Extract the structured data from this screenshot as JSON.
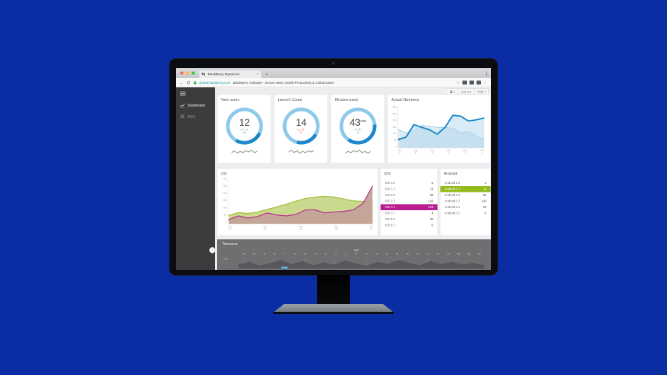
{
  "scene": {
    "background": "#0b2da4"
  },
  "icons": {
    "close": "×",
    "new_tab": "+",
    "back": "←",
    "star": "☆",
    "menu_dots": "⋮",
    "caret_down": "▾",
    "chevron_left": "‹",
    "download": "↓"
  },
  "browser": {
    "traffic_lights": [
      "#ff5f57",
      "#febc2e",
      "#28c840"
    ],
    "tab": {
      "title": "BlackBerry Dynamics"
    },
    "address": {
      "url": "global.blackberry.com",
      "page_title": "BlackBerry Software - Secure UEM, Mobile Productivity & Collaboration"
    }
  },
  "account_bar": {
    "logout": "Log out",
    "help": "Help"
  },
  "sidebar": {
    "items": [
      "Dashboard",
      "Apps"
    ]
  },
  "colors": {
    "ring_light": "#8fc9e9",
    "ring_dark": "#1d88cb",
    "green": "#3aa546",
    "red": "#e0442e",
    "ios_highlight": "#b81c8e",
    "android_highlight": "#93bb1c",
    "timezone_highlight": "#58b7e8"
  },
  "kpis": [
    {
      "title": "New users",
      "value": "12",
      "unit": "",
      "change_line1": "11",
      "change_line2": "%",
      "trend": "up",
      "arc_start": 115,
      "arc_sweep": 95
    },
    {
      "title": "Launch Count",
      "value": "14",
      "unit": "",
      "change_line1": "11,",
      "change_line2": "5",
      "trend": "down",
      "arc_start": 120,
      "arc_sweep": 75
    },
    {
      "title": "Minutes used",
      "value": "43",
      "unit": "MIN",
      "change_line1": "5,",
      "change_line2": "8",
      "trend": "up",
      "arc_start": 85,
      "arc_sweep": 130
    }
  ],
  "ios": {
    "title": "iOS",
    "highlight_index": 4,
    "rows": [
      [
        "iOS 1.0",
        "2"
      ],
      [
        "iOS 1.7",
        "11"
      ],
      [
        "iOS 2.3",
        "52"
      ],
      [
        "iOS 3.7",
        "142"
      ],
      [
        "iOS 4.1",
        "423"
      ],
      [
        "iOS 3.7",
        "4"
      ],
      [
        "iOS 5.2",
        "25"
      ],
      [
        "iOS 5.7",
        "6"
      ]
    ]
  },
  "android": {
    "title": "Android",
    "highlight_index": 1,
    "rows": [
      [
        "Android 1.0",
        "2"
      ],
      [
        "Android 1.7",
        "11"
      ],
      [
        "Android 2.3",
        "52"
      ],
      [
        "Android 3.7",
        "142"
      ],
      [
        "Android 4.1",
        "23"
      ],
      [
        "Android 3.7",
        "4"
      ]
    ]
  },
  "timezone": {
    "title": "Timezone",
    "y_label": "100",
    "gmt_label": "GMT"
  },
  "chart_data": [
    {
      "id": "actual_numbers",
      "type": "line",
      "title": "Actual Numbers",
      "ylim": [
        0,
        300
      ],
      "yticks": [
        300,
        250,
        200,
        150,
        100,
        50,
        0
      ],
      "x_labels": [
        "Jul 2",
        "Aug 9",
        "Sep 7",
        "Oct 1",
        "Nov 4",
        "Dec 4"
      ],
      "legend": "none",
      "grid": false,
      "series": [
        {
          "name": "previous",
          "color": "#a9cfe5",
          "width": 2,
          "fill": "#ddebf5",
          "values": [
            135,
            108,
            122,
            165,
            158,
            150,
            149,
            143,
            108,
            118,
            88,
            62
          ]
        },
        {
          "name": "current",
          "color": "#1787c9",
          "width": 4,
          "fill": "rgba(170,210,235,0.45)",
          "values": [
            60,
            78,
            170,
            150,
            132,
            100,
            150,
            238,
            232,
            196,
            205,
            218
          ]
        }
      ]
    },
    {
      "id": "os",
      "type": "area",
      "title": "OS",
      "ylim": [
        0,
        300
      ],
      "yticks": [
        300,
        250,
        200,
        150,
        100,
        50,
        0
      ],
      "x_labels": [
        "Jan '13",
        "Jan '14",
        "June '15",
        "Jan '16",
        "Jan '17"
      ],
      "legend": "none",
      "grid": false,
      "series": [
        {
          "name": "android",
          "color": "#a3bf38",
          "width": 2.5,
          "fill": "rgba(187,208,112,0.8)",
          "values": [
            55,
            75,
            68,
            78,
            95,
            112,
            130,
            150,
            168,
            178,
            182,
            178,
            165,
            152,
            148,
            150
          ]
        },
        {
          "name": "ios",
          "color": "#bb2d8e",
          "width": 2.5,
          "fill": "rgba(196,162,152,0.95)",
          "values": [
            28,
            52,
            38,
            48,
            72,
            58,
            52,
            62,
            92,
            92,
            72,
            78,
            82,
            92,
            135,
            250
          ]
        }
      ]
    },
    {
      "id": "kpi_sparklines",
      "type": "line",
      "ylim": [
        0,
        10
      ],
      "series": [
        {
          "name": "new_users_spark",
          "color": "#8a8a8a",
          "values": [
            4,
            7,
            3,
            6,
            4,
            7,
            5,
            8,
            4,
            6
          ]
        },
        {
          "name": "launch_count_spark",
          "color": "#8a8a8a",
          "values": [
            5,
            8,
            4,
            7,
            3,
            6,
            4,
            7,
            5,
            7
          ]
        },
        {
          "name": "minutes_used_spark",
          "color": "#8a8a8a",
          "values": [
            3,
            6,
            4,
            7,
            5,
            8,
            4,
            6,
            3,
            6
          ]
        }
      ]
    },
    {
      "id": "timezone_histogram",
      "type": "area",
      "ylim": [
        0,
        100
      ],
      "x_labels": [
        "-11",
        "-10",
        "-9",
        "-8",
        "-7",
        "-6",
        "-5",
        "-4",
        "-3",
        "-2",
        "-1",
        "0",
        "+1",
        "+2",
        "+3",
        "+4",
        "+5",
        "+6",
        "+7",
        "+8",
        "+9",
        "+10",
        "+11",
        "+12"
      ],
      "highlight_index": 4,
      "series": [
        {
          "name": "devices",
          "color": "#55555a",
          "fill": "#57575c",
          "values": [
            30,
            55,
            20,
            45,
            70,
            35,
            60,
            25,
            50,
            30,
            65,
            40,
            20,
            55,
            35,
            70,
            45,
            25,
            60,
            35,
            55,
            30,
            45,
            25
          ]
        }
      ]
    }
  ]
}
